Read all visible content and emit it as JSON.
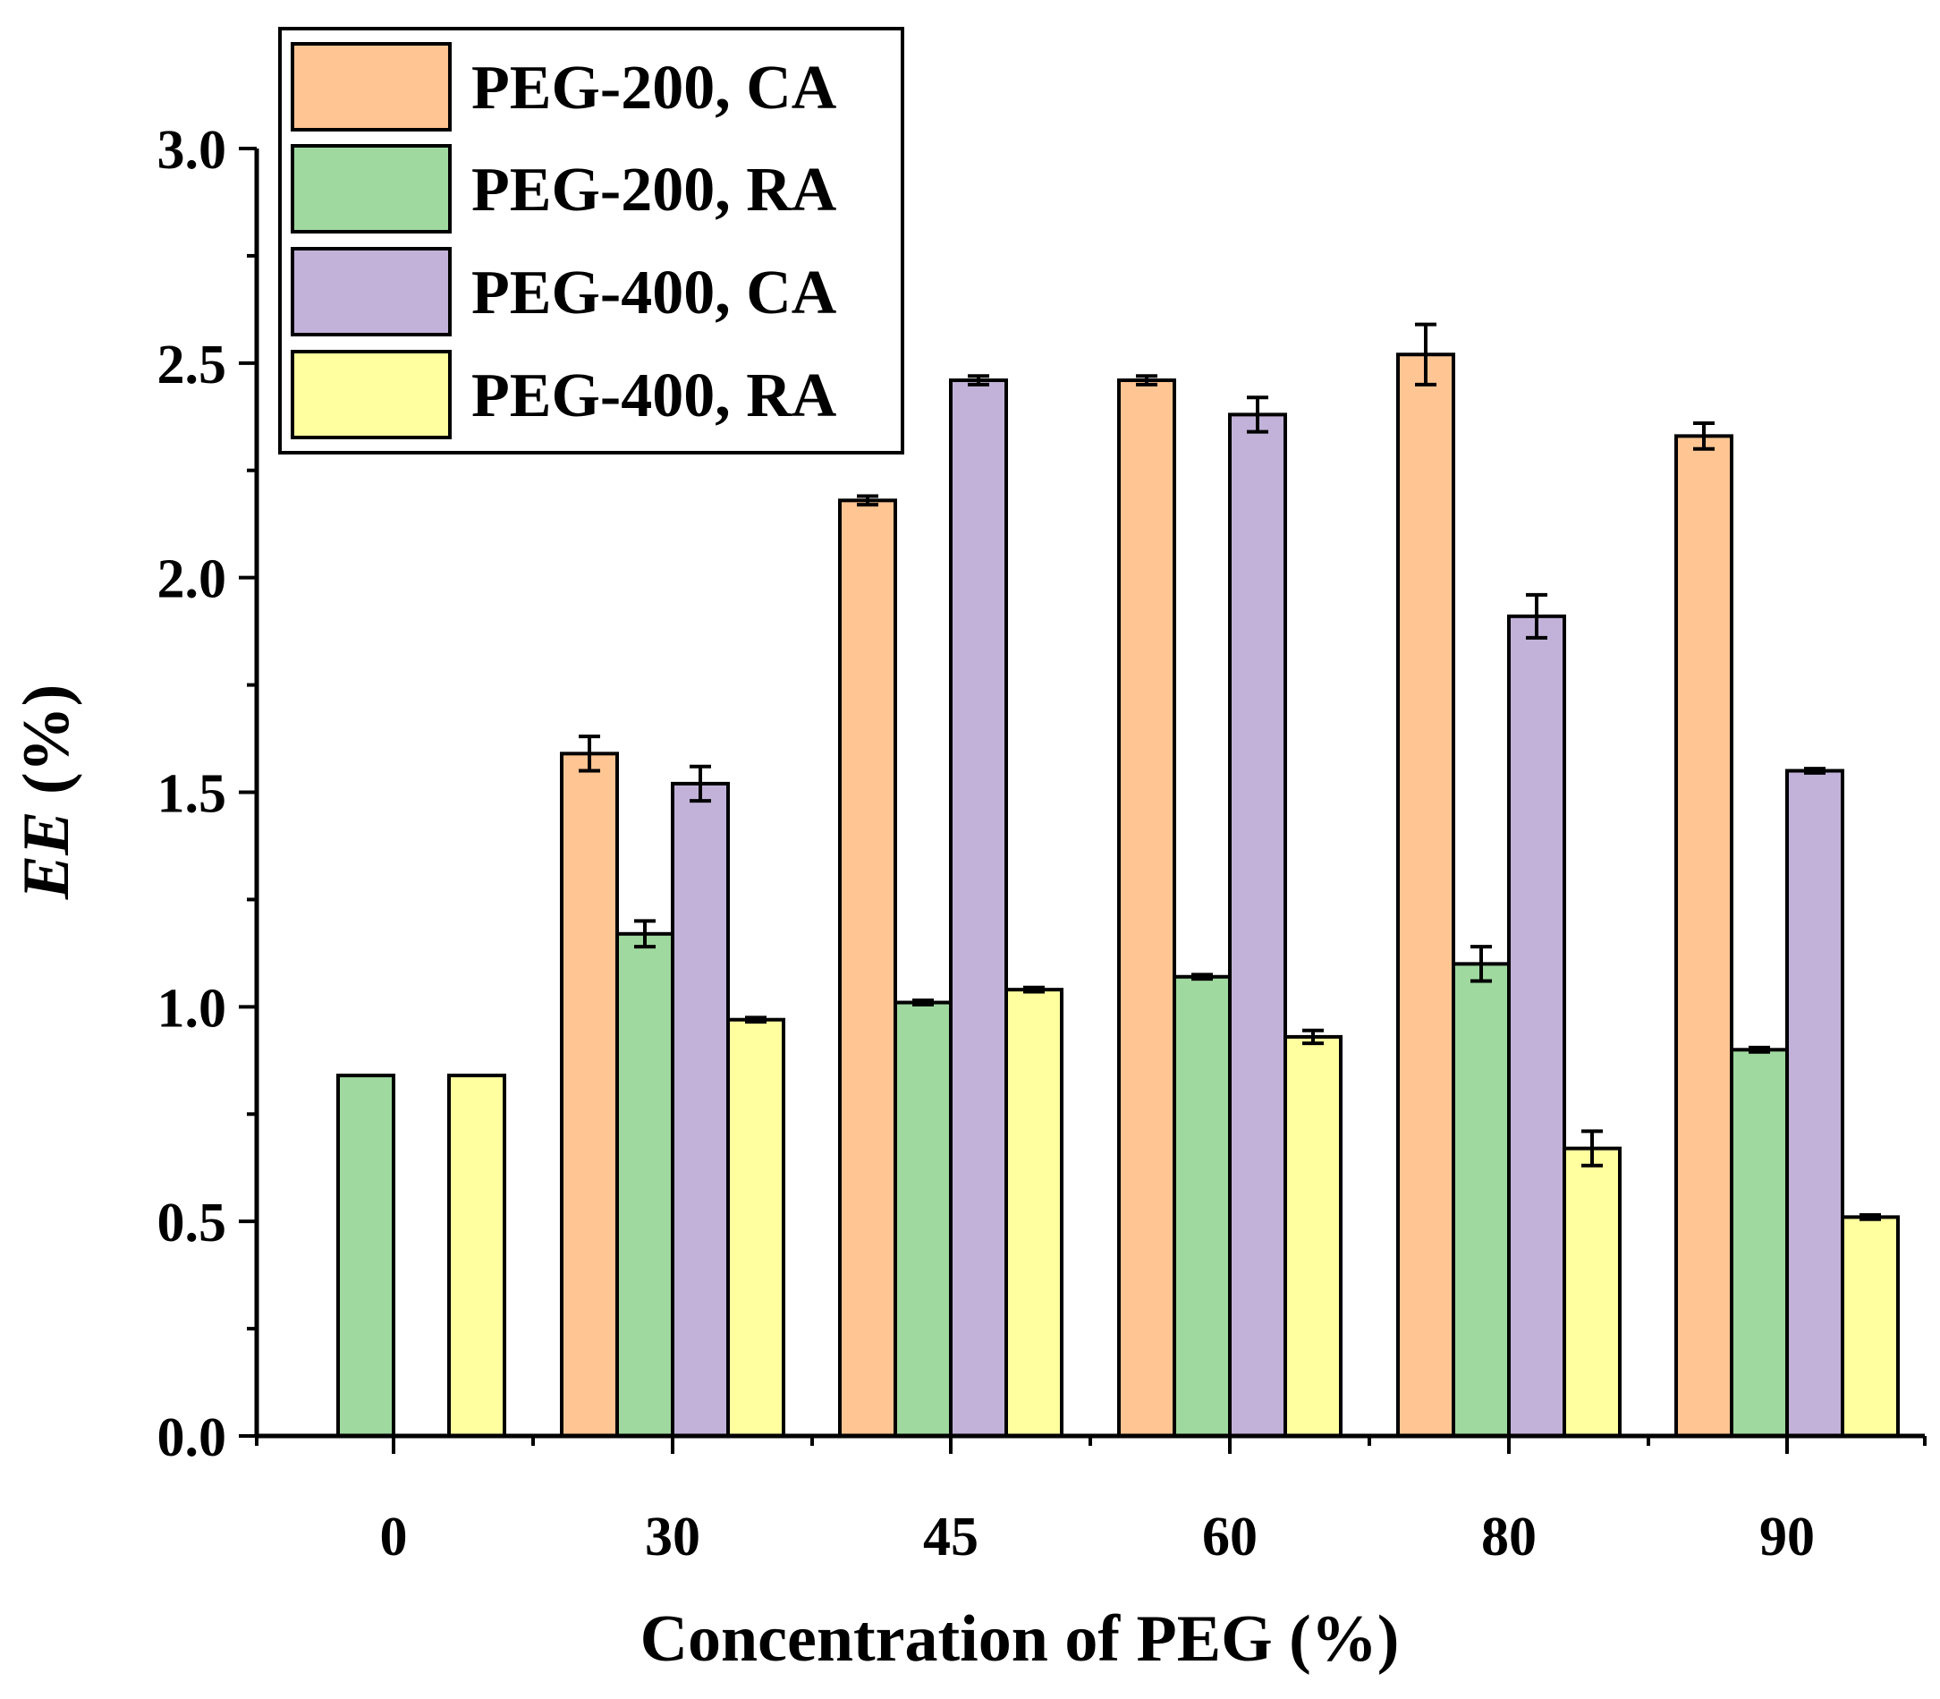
{
  "chart_data": {
    "type": "bar",
    "xlabel": "Concentration of PEG (%)",
    "ylabel_italic": "EE",
    "ylabel_unit": " (%)",
    "categories": [
      "0",
      "30",
      "45",
      "60",
      "80",
      "90"
    ],
    "ylim": [
      0,
      3.0
    ],
    "yticks": [
      {
        "value": 0.0,
        "label": "0.0"
      },
      {
        "value": 0.5,
        "label": "0.5"
      },
      {
        "value": 1.0,
        "label": "1.0"
      },
      {
        "value": 1.5,
        "label": "1.5"
      },
      {
        "value": 2.0,
        "label": "2.0"
      },
      {
        "value": 2.5,
        "label": "2.5"
      },
      {
        "value": 3.0,
        "label": "3.0"
      }
    ],
    "legend_position": "top-left",
    "series": [
      {
        "name": "PEG-200, CA",
        "color": "#FFC593",
        "values": [
          null,
          1.59,
          2.18,
          2.46,
          2.52,
          2.33
        ],
        "errors": [
          null,
          0.04,
          0.01,
          0.01,
          0.07,
          0.03
        ]
      },
      {
        "name": "PEG-200, RA",
        "color": "#9FD99F",
        "values": [
          0.84,
          1.17,
          1.01,
          1.07,
          1.1,
          0.9
        ],
        "errors": [
          0,
          0.03,
          0.005,
          0.005,
          0.04,
          0.005
        ]
      },
      {
        "name": "PEG-400, CA",
        "color": "#C2B2D9",
        "values": [
          null,
          1.52,
          2.46,
          2.38,
          1.91,
          1.55
        ],
        "errors": [
          null,
          0.04,
          0.01,
          0.04,
          0.05,
          0.005
        ]
      },
      {
        "name": "PEG-400, RA",
        "color": "#FFFF9F",
        "values": [
          0.84,
          0.97,
          1.04,
          0.93,
          0.67,
          0.51
        ],
        "errors": [
          0,
          0.005,
          0.005,
          0.015,
          0.04,
          0.005
        ]
      }
    ]
  }
}
